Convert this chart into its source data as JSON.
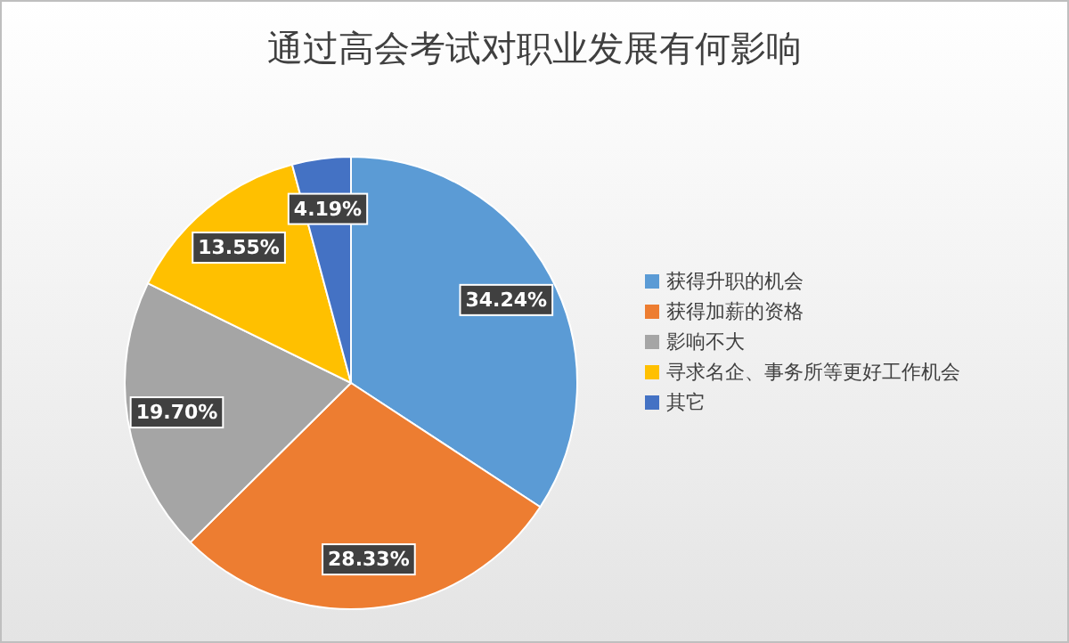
{
  "chart_data": {
    "type": "pie",
    "title": "通过高会考试对职业发展有何影响",
    "categories": [
      "获得升职的机会",
      "获得加薪的资格",
      "影响不大",
      "寻求名企、事务所等更好工作机会",
      "其它"
    ],
    "values": [
      34.24,
      28.33,
      19.7,
      13.55,
      4.19
    ],
    "colors": [
      "#5b9bd5",
      "#ed7d31",
      "#a5a5a5",
      "#ffc000",
      "#4472c4"
    ],
    "value_labels": [
      "34.24%",
      "28.33%",
      "19.70%",
      "13.55%",
      "4.19%"
    ],
    "legend": "right"
  }
}
